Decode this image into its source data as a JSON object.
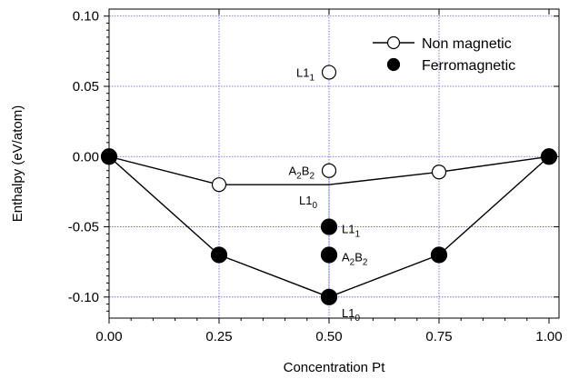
{
  "chart_data": {
    "type": "scatter",
    "title": "",
    "xlabel": "Concentration Pt",
    "ylabel": "Enthalpy (eV/atom)",
    "xlim": [
      0.0,
      1.0
    ],
    "ylim": [
      -0.115,
      0.105
    ],
    "x_ticks": [
      0.0,
      0.25,
      0.5,
      0.75,
      1.0
    ],
    "x_tick_labels": [
      "0.00",
      "0.25",
      "0.50",
      "0.75",
      "1.00"
    ],
    "y_ticks": [
      -0.1,
      -0.05,
      0.0,
      0.05,
      0.1
    ],
    "y_tick_labels": [
      "-0.10",
      "-0.05",
      "0.00",
      "0.05",
      "0.10"
    ],
    "grid": true,
    "legend_position": "top-right",
    "series": [
      {
        "name": "Non magnetic",
        "marker": "open-circle",
        "color": "#000000",
        "points": [
          {
            "x": 0.0,
            "y": 0.0
          },
          {
            "x": 0.25,
            "y": -0.02
          },
          {
            "x": 0.5,
            "y": 0.06
          },
          {
            "x": 0.5,
            "y": -0.01
          },
          {
            "x": 0.75,
            "y": -0.011
          },
          {
            "x": 1.0,
            "y": 0.0
          }
        ],
        "hull": [
          {
            "x": 0.0,
            "y": 0.0
          },
          {
            "x": 0.25,
            "y": -0.02
          },
          {
            "x": 0.5,
            "y": -0.02
          },
          {
            "x": 0.75,
            "y": -0.011
          },
          {
            "x": 1.0,
            "y": 0.0
          }
        ]
      },
      {
        "name": "Ferromagnetic",
        "marker": "filled-circle",
        "color": "#000000",
        "points": [
          {
            "x": 0.0,
            "y": 0.0
          },
          {
            "x": 0.25,
            "y": -0.07
          },
          {
            "x": 0.5,
            "y": -0.05
          },
          {
            "x": 0.5,
            "y": -0.07
          },
          {
            "x": 0.5,
            "y": -0.1
          },
          {
            "x": 0.75,
            "y": -0.07
          },
          {
            "x": 1.0,
            "y": 0.0
          }
        ],
        "hull": [
          {
            "x": 0.0,
            "y": 0.0
          },
          {
            "x": 0.25,
            "y": -0.07
          },
          {
            "x": 0.5,
            "y": -0.1
          },
          {
            "x": 0.75,
            "y": -0.07
          },
          {
            "x": 1.0,
            "y": 0.0
          }
        ]
      }
    ],
    "annotations": [
      {
        "base": "L1",
        "sub": "1",
        "x": 0.5,
        "y": 0.06,
        "side": "left"
      },
      {
        "base": "A",
        "sub": "2",
        "base2": "B",
        "sub2": "2",
        "x": 0.5,
        "y": -0.01,
        "side": "left"
      },
      {
        "base": "L1",
        "sub": "0",
        "x": 0.5,
        "y": -0.02,
        "side": "below-left"
      },
      {
        "base": "L1",
        "sub": "1",
        "x": 0.5,
        "y": -0.05,
        "side": "right"
      },
      {
        "base": "A",
        "sub": "2",
        "base2": "B",
        "sub2": "2",
        "x": 0.5,
        "y": -0.07,
        "side": "right"
      },
      {
        "base": "L1",
        "sub": "0",
        "x": 0.5,
        "y": -0.1,
        "side": "below-right"
      }
    ]
  }
}
